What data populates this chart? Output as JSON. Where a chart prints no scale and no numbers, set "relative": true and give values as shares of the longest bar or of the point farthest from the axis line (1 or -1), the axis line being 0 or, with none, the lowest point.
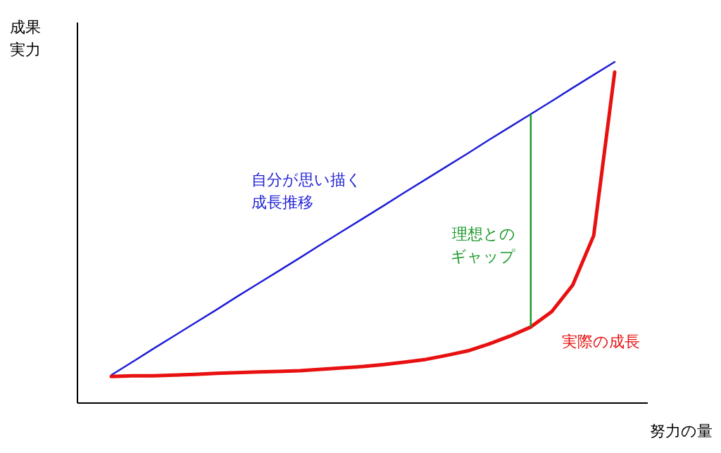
{
  "chart_data": {
    "type": "line",
    "relative": true,
    "xlabel": "努力の量",
    "ylabel": "成果実力",
    "categories": [
      null,
      null,
      null,
      null,
      null,
      null,
      null,
      null,
      null,
      null,
      null,
      null,
      null,
      null,
      null,
      null,
      null,
      null,
      null,
      null,
      null,
      null,
      null,
      null,
      null
    ],
    "series": [
      {
        "name": "自分が思い描く成長推移",
        "color": "#1f1fd6",
        "values": [
          0.082,
          0.12,
          0.159,
          0.197,
          0.235,
          0.273,
          0.312,
          0.35,
          0.388,
          0.426,
          0.465,
          0.503,
          0.541,
          0.579,
          0.618,
          0.656,
          0.694,
          0.732,
          0.771,
          0.809,
          0.847,
          0.885,
          0.924,
          0.962,
          1.0
        ]
      },
      {
        "name": "実際の成長",
        "color": "#e81010",
        "values": [
          0.078,
          0.08,
          0.08,
          0.082,
          0.084,
          0.087,
          0.089,
          0.091,
          0.093,
          0.095,
          0.099,
          0.103,
          0.107,
          0.113,
          0.12,
          0.128,
          0.14,
          0.153,
          0.173,
          0.196,
          0.223,
          0.268,
          0.346,
          0.491,
          0.97
        ]
      }
    ],
    "annotations": [
      "理想とのギャップ"
    ]
  }
}
